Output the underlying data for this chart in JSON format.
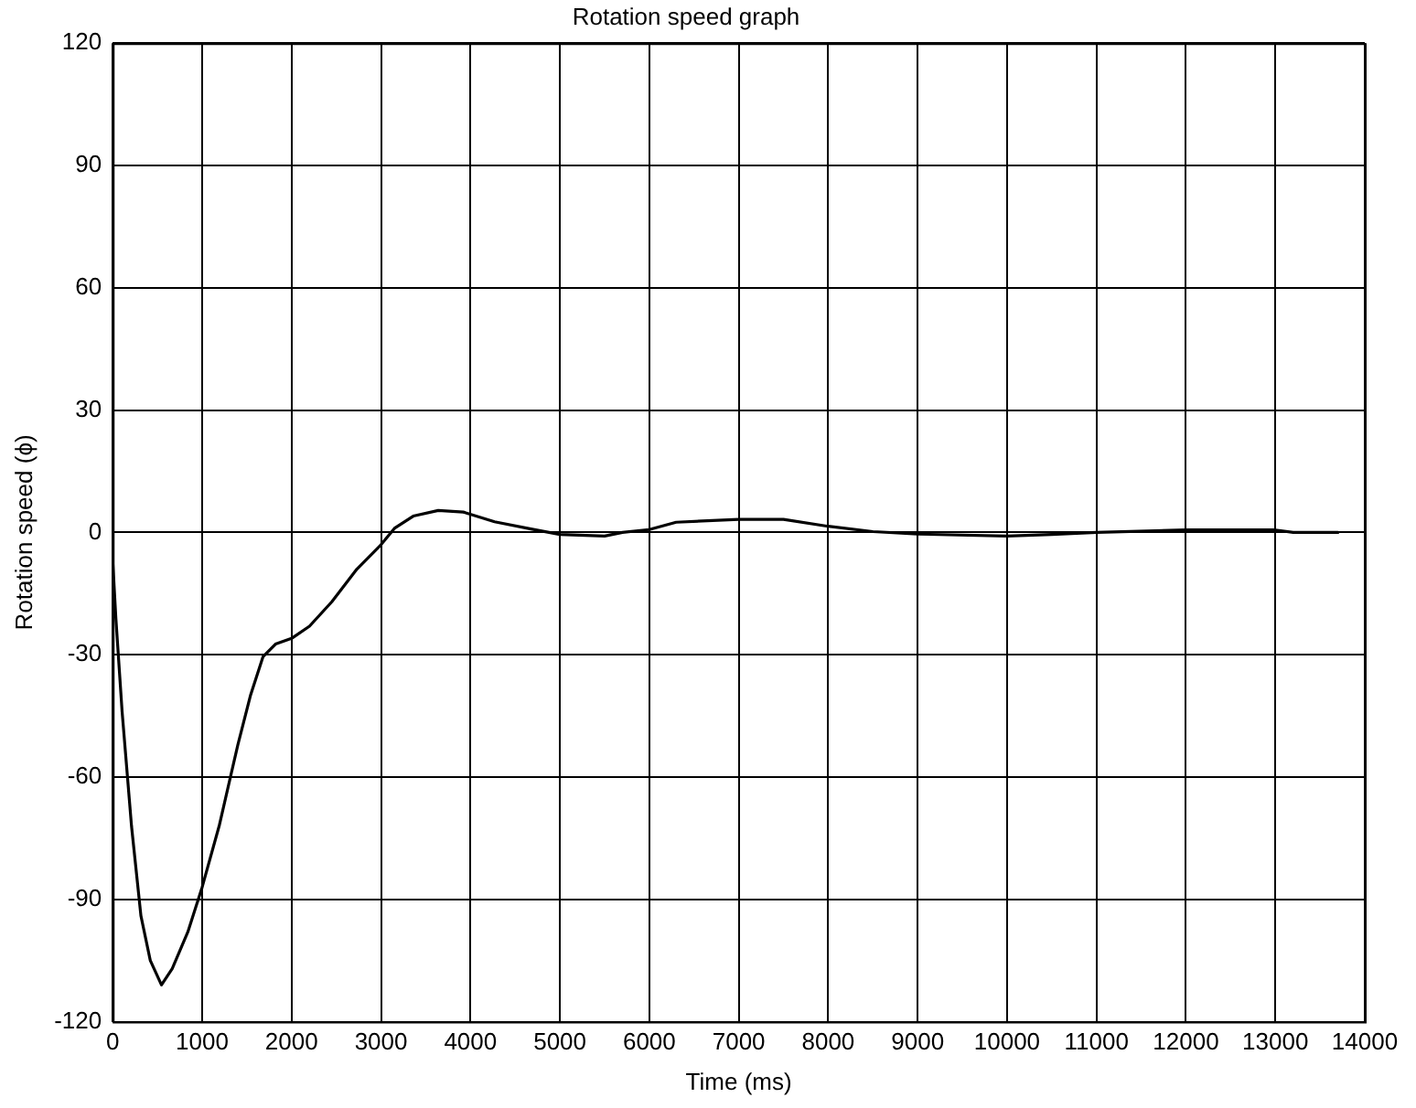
{
  "chart_data": {
    "type": "line",
    "title": "Rotation speed graph",
    "xlabel": "Time (ms)",
    "ylabel": "Rotation speed (ϕ)",
    "xlim": [
      0,
      14000
    ],
    "xticks": [
      0,
      1000,
      2000,
      3000,
      4000,
      5000,
      6000,
      7000,
      8000,
      9000,
      10000,
      11000,
      12000,
      13000,
      14000
    ],
    "ylim": [
      -120,
      120
    ],
    "yticks": [
      -120,
      -90,
      -60,
      -30,
      0,
      30,
      60,
      90,
      120
    ],
    "grid": true,
    "line_style": "solid",
    "marker": "none",
    "series": [
      {
        "color": "#000000",
        "x": [
          0,
          35,
          105,
          210,
          315,
          420,
          545,
          665,
          840,
          1000,
          1190,
          1400,
          1540,
          1680,
          1820,
          2000,
          2200,
          2450,
          2730,
          3000,
          3150,
          3360,
          3640,
          3920,
          4270,
          4690,
          5000,
          5500,
          5700,
          6000,
          6300,
          7000,
          7500,
          8000,
          8500,
          9000,
          10000,
          10500,
          11000,
          12000,
          13000,
          13200,
          13700
        ],
        "values": [
          -7,
          -21,
          -44,
          -72,
          -94,
          -105,
          -111,
          -107,
          -98,
          -87,
          -72,
          -52,
          -40,
          -30.5,
          -27.4,
          -26,
          -23,
          -17,
          -9,
          -3,
          1,
          4,
          5.4,
          5,
          2.6,
          0.8,
          -0.5,
          -0.9,
          0,
          0.7,
          2.5,
          3.2,
          3.2,
          1.5,
          0.2,
          -0.4,
          -0.9,
          -0.5,
          0,
          0.6,
          0.6,
          0,
          0
        ]
      }
    ]
  }
}
